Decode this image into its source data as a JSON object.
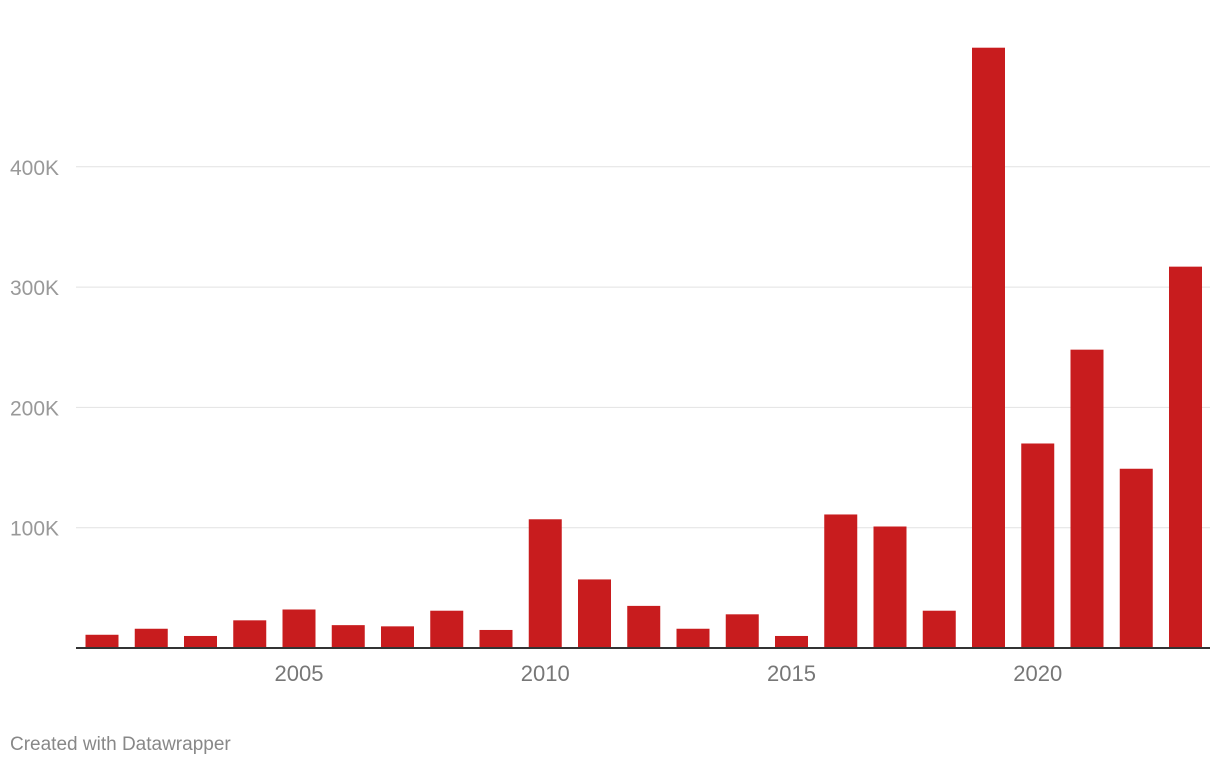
{
  "chart_data": {
    "type": "bar",
    "x": [
      2001,
      2002,
      2003,
      2004,
      2005,
      2006,
      2007,
      2008,
      2009,
      2010,
      2011,
      2012,
      2013,
      2014,
      2015,
      2016,
      2017,
      2018,
      2019,
      2020,
      2021,
      2022,
      2023
    ],
    "values": [
      11000,
      16000,
      10000,
      23000,
      32000,
      19000,
      18000,
      31000,
      15000,
      107000,
      57000,
      35000,
      16000,
      28000,
      10000,
      111000,
      101000,
      31000,
      499000,
      170000,
      248000,
      149000,
      317000
    ],
    "y_ticks": [
      100000,
      200000,
      300000,
      400000
    ],
    "y_tick_labels": [
      "100K",
      "200K",
      "300K",
      "400K"
    ],
    "x_ticks": [
      2005,
      2010,
      2015,
      2020
    ],
    "x_tick_labels": [
      "2005",
      "2010",
      "2015",
      "2020"
    ],
    "ylim": [
      0,
      500000
    ],
    "title": "",
    "xlabel": "",
    "ylabel": "",
    "grid": true,
    "bar_color": "#c81c1e"
  },
  "footer": {
    "credit": "Created with Datawrapper"
  }
}
